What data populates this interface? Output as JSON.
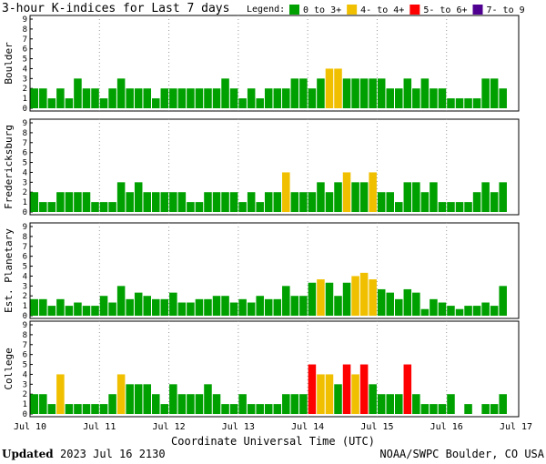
{
  "chart_data": {
    "type": "bar",
    "title": "3-hour K-indices for Last 7 days",
    "legend_title": "Legend:",
    "legend": [
      {
        "name": "0 to 3+",
        "color": "#00a000"
      },
      {
        "name": "4- to 4+",
        "color": "#f0c000"
      },
      {
        "name": "5- to 6+",
        "color": "#ff0000"
      },
      {
        "name": "7- to 9",
        "color": "#500090"
      }
    ],
    "xlabel": "Coordinate Universal Time (UTC)",
    "days": [
      "Jul 10",
      "Jul 11",
      "Jul 12",
      "Jul 13",
      "Jul 14",
      "Jul 15",
      "Jul 16",
      "Jul 17"
    ],
    "ylim": [
      0,
      9
    ],
    "yticks": [
      0,
      1,
      2,
      3,
      4,
      5,
      6,
      7,
      8,
      9
    ],
    "grid": true,
    "panels": [
      {
        "name": "Boulder",
        "values": [
          2,
          2,
          1,
          2,
          1,
          3,
          2,
          2,
          1,
          2,
          3,
          2,
          2,
          2,
          1,
          2,
          2,
          2,
          2,
          2,
          2,
          2,
          3,
          2,
          1,
          2,
          1,
          2,
          2,
          2,
          3,
          3,
          2,
          3,
          4,
          4,
          3,
          3,
          3,
          3,
          3,
          2,
          2,
          3,
          2,
          3,
          2,
          2,
          1,
          1,
          1,
          1,
          3,
          3,
          2,
          0
        ],
        "colors": [
          "#00a000",
          "#00a000",
          "#00a000",
          "#00a000",
          "#00a000",
          "#00a000",
          "#00a000",
          "#00a000",
          "#00a000",
          "#00a000",
          "#00a000",
          "#00a000",
          "#00a000",
          "#00a000",
          "#00a000",
          "#00a000",
          "#00a000",
          "#00a000",
          "#00a000",
          "#00a000",
          "#00a000",
          "#00a000",
          "#00a000",
          "#00a000",
          "#00a000",
          "#00a000",
          "#00a000",
          "#00a000",
          "#00a000",
          "#00a000",
          "#00a000",
          "#00a000",
          "#00a000",
          "#00a000",
          "#f0c000",
          "#f0c000",
          "#00a000",
          "#00a000",
          "#00a000",
          "#00a000",
          "#00a000",
          "#00a000",
          "#00a000",
          "#00a000",
          "#00a000",
          "#00a000",
          "#00a000",
          "#00a000",
          "#00a000",
          "#00a000",
          "#00a000",
          "#00a000",
          "#00a000",
          "#00a000",
          "#00a000",
          "#00a000"
        ]
      },
      {
        "name": "Fredericksburg",
        "values": [
          2,
          1,
          1,
          2,
          2,
          2,
          2,
          1,
          1,
          1,
          3,
          2,
          3,
          2,
          2,
          2,
          2,
          2,
          1,
          1,
          2,
          2,
          2,
          2,
          1,
          2,
          1,
          2,
          2,
          4,
          2,
          2,
          2,
          3,
          2,
          3,
          4,
          3,
          3,
          4,
          2,
          2,
          1,
          3,
          3,
          2,
          3,
          1,
          1,
          1,
          1,
          2,
          3,
          2,
          3,
          0
        ],
        "colors": [
          "#00a000",
          "#00a000",
          "#00a000",
          "#00a000",
          "#00a000",
          "#00a000",
          "#00a000",
          "#00a000",
          "#00a000",
          "#00a000",
          "#00a000",
          "#00a000",
          "#00a000",
          "#00a000",
          "#00a000",
          "#00a000",
          "#00a000",
          "#00a000",
          "#00a000",
          "#00a000",
          "#00a000",
          "#00a000",
          "#00a000",
          "#00a000",
          "#00a000",
          "#00a000",
          "#00a000",
          "#00a000",
          "#00a000",
          "#f0c000",
          "#00a000",
          "#00a000",
          "#00a000",
          "#00a000",
          "#00a000",
          "#00a000",
          "#f0c000",
          "#00a000",
          "#00a000",
          "#f0c000",
          "#00a000",
          "#00a000",
          "#00a000",
          "#00a000",
          "#00a000",
          "#00a000",
          "#00a000",
          "#00a000",
          "#00a000",
          "#00a000",
          "#00a000",
          "#00a000",
          "#00a000",
          "#00a000",
          "#00a000",
          "#00a000"
        ]
      },
      {
        "name": "Est. Planetary",
        "values": [
          1.67,
          1.67,
          1,
          1.67,
          1,
          1.33,
          1,
          1,
          2,
          1.33,
          3,
          1.67,
          2.33,
          2,
          1.67,
          1.67,
          2.33,
          1.33,
          1.33,
          1.67,
          1.67,
          2,
          2,
          1.33,
          1.67,
          1.33,
          2,
          1.67,
          1.67,
          3,
          2,
          2,
          3.33,
          3.67,
          3.33,
          2,
          3.33,
          4,
          4.33,
          3.67,
          2.67,
          2.33,
          1.67,
          2.67,
          2.33,
          0.67,
          1.67,
          1.33,
          1,
          0.67,
          1,
          1,
          1.33,
          1,
          3,
          0
        ],
        "colors": [
          "#00a000",
          "#00a000",
          "#00a000",
          "#00a000",
          "#00a000",
          "#00a000",
          "#00a000",
          "#00a000",
          "#00a000",
          "#00a000",
          "#00a000",
          "#00a000",
          "#00a000",
          "#00a000",
          "#00a000",
          "#00a000",
          "#00a000",
          "#00a000",
          "#00a000",
          "#00a000",
          "#00a000",
          "#00a000",
          "#00a000",
          "#00a000",
          "#00a000",
          "#00a000",
          "#00a000",
          "#00a000",
          "#00a000",
          "#00a000",
          "#00a000",
          "#00a000",
          "#00a000",
          "#f0c000",
          "#00a000",
          "#00a000",
          "#00a000",
          "#f0c000",
          "#f0c000",
          "#f0c000",
          "#00a000",
          "#00a000",
          "#00a000",
          "#00a000",
          "#00a000",
          "#00a000",
          "#00a000",
          "#00a000",
          "#00a000",
          "#00a000",
          "#00a000",
          "#00a000",
          "#00a000",
          "#00a000",
          "#00a000",
          "#00a000"
        ]
      },
      {
        "name": "College",
        "values": [
          2,
          2,
          1,
          4,
          1,
          1,
          1,
          1,
          1,
          2,
          4,
          3,
          3,
          3,
          2,
          1,
          3,
          2,
          2,
          2,
          3,
          2,
          1,
          1,
          2,
          1,
          1,
          1,
          1,
          2,
          2,
          2,
          5,
          4,
          4,
          3,
          5,
          4,
          5,
          3,
          2,
          2,
          2,
          5,
          2,
          1,
          1,
          1,
          2,
          0,
          1,
          0,
          1,
          1,
          2,
          0
        ],
        "colors": [
          "#00a000",
          "#00a000",
          "#00a000",
          "#f0c000",
          "#00a000",
          "#00a000",
          "#00a000",
          "#00a000",
          "#00a000",
          "#00a000",
          "#f0c000",
          "#00a000",
          "#00a000",
          "#00a000",
          "#00a000",
          "#00a000",
          "#00a000",
          "#00a000",
          "#00a000",
          "#00a000",
          "#00a000",
          "#00a000",
          "#00a000",
          "#00a000",
          "#00a000",
          "#00a000",
          "#00a000",
          "#00a000",
          "#00a000",
          "#00a000",
          "#00a000",
          "#00a000",
          "#ff0000",
          "#f0c000",
          "#f0c000",
          "#00a000",
          "#ff0000",
          "#f0c000",
          "#ff0000",
          "#00a000",
          "#00a000",
          "#00a000",
          "#00a000",
          "#ff0000",
          "#00a000",
          "#00a000",
          "#00a000",
          "#00a000",
          "#00a000",
          "#00a000",
          "#00a000",
          "#00a000",
          "#00a000",
          "#00a000",
          "#00a000",
          "#00a000"
        ]
      }
    ],
    "footer_label": "Updated",
    "footer_date": "2023 Jul 16 2130",
    "footer_source": "NOAA/SWPC Boulder, CO USA"
  }
}
